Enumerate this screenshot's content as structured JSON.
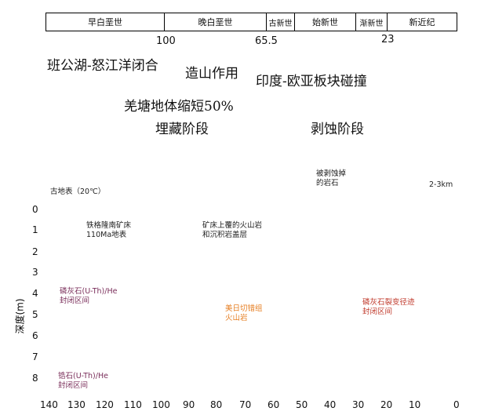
{
  "periods": [
    {
      "label": "早白垩世",
      "color": "#1f8a3c"
    },
    {
      "label": "晚白垩世",
      "color": "#b5d97a"
    },
    {
      "label": "古新世",
      "color": "#d97a35"
    },
    {
      "label": "始新世",
      "color": "#f4a84a"
    },
    {
      "label": "渐新世",
      "color": "#f7cfae"
    },
    {
      "label": "新近纪",
      "color": "#f6c48a"
    }
  ],
  "boundary_ages": {
    "a100": "100",
    "a65": "65.5",
    "a23": "23"
  },
  "events": {
    "closure": "班公湖-怒江洋闭合",
    "orogeny": "造山作用",
    "collision": "印度-欧亚板块碰撞",
    "shortening": "羌塘地体缩短50%",
    "burial": "埋藏阶段",
    "denudation": "剥蚀阶段"
  },
  "annotations": {
    "eroded_rock": [
      "被剥蚀掉",
      "的岩石"
    ],
    "eroded_thickness": "2-3km",
    "paleosurface": "古地表（20℃）",
    "deposit": [
      "铁格隆南矿床",
      "110Ma地表"
    ],
    "cover": [
      "矿床上覆的火山岩",
      "和沉积岩盖层"
    ],
    "apatite_he": [
      "磷灰石(U-Th)/He",
      "封闭区间"
    ],
    "apatite_ft": [
      "磷灰石裂变径迹",
      "封闭区间"
    ],
    "zircon_he": [
      "锆石(U-Th)/He",
      "封闭区间"
    ],
    "meiri": [
      "美日切错组",
      "火山岩"
    ]
  },
  "y_axis": {
    "label": "深度(m)",
    "ticks": [
      "0",
      "1",
      "2",
      "3",
      "4",
      "5",
      "6",
      "7",
      "8"
    ]
  },
  "x_axis": {
    "ticks": [
      "140",
      "130",
      "120",
      "110",
      "100",
      "90",
      "80",
      "70",
      "60",
      "50",
      "40",
      "30",
      "20",
      "10",
      "0"
    ]
  },
  "colors": {
    "cover_fill": "#c6dbe7",
    "basement_fill": "#d4d4d4",
    "volcanic_fill": "#f5c6a9",
    "eroded_fill": "#f3f0b2",
    "hatch": "#a4466f",
    "apatite_ft_band": "#f2f0d0"
  }
}
